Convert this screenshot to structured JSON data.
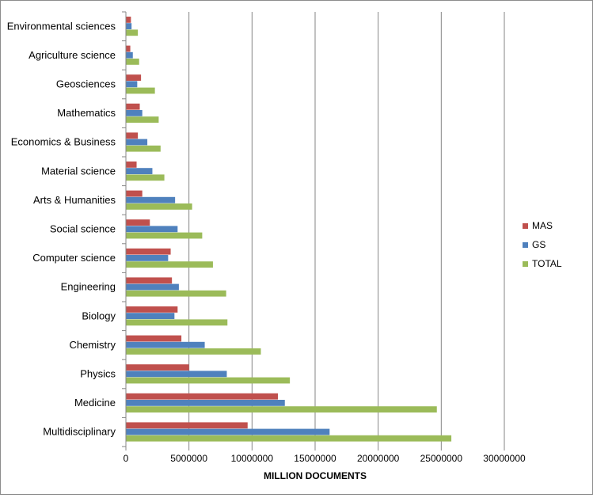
{
  "chart_data": {
    "type": "bar",
    "orientation": "horizontal",
    "title": "",
    "xlabel": "MILLION DOCUMENTS",
    "ylabel": "",
    "xlim": [
      0,
      30000000
    ],
    "x_ticks": [
      "0",
      "5000000",
      "10000000",
      "15000000",
      "20000000",
      "25000000",
      "30000000"
    ],
    "x_tick_values": [
      0,
      5000000,
      10000000,
      15000000,
      20000000,
      25000000,
      30000000
    ],
    "grid": "vertical",
    "legend_position": "right",
    "categories": [
      "Environmental sciences",
      "Agriculture science",
      "Geosciences",
      "Mathematics",
      "Economics & Business",
      "Material science",
      "Arts & Humanities",
      "Social science",
      "Computer science",
      "Engineering",
      "Biology",
      "Chemistry",
      "Physics",
      "Medicine",
      "Multidisciplinary"
    ],
    "series": [
      {
        "name": "MAS",
        "color": "#c0504d",
        "values": [
          400000,
          350000,
          1200000,
          1100000,
          950000,
          850000,
          1300000,
          1900000,
          3550000,
          3650000,
          4100000,
          4400000,
          5000000,
          12050000,
          9650000
        ]
      },
      {
        "name": "GS",
        "color": "#4f81bd",
        "values": [
          450000,
          550000,
          900000,
          1300000,
          1700000,
          2100000,
          3900000,
          4100000,
          3350000,
          4200000,
          3850000,
          6250000,
          8000000,
          12600000,
          16150000
        ]
      },
      {
        "name": "TOTAL",
        "color": "#9bbb59",
        "values": [
          950000,
          1050000,
          2300000,
          2600000,
          2750000,
          3050000,
          5250000,
          6050000,
          6900000,
          7950000,
          8050000,
          10700000,
          13000000,
          24650000,
          25800000
        ]
      }
    ]
  }
}
